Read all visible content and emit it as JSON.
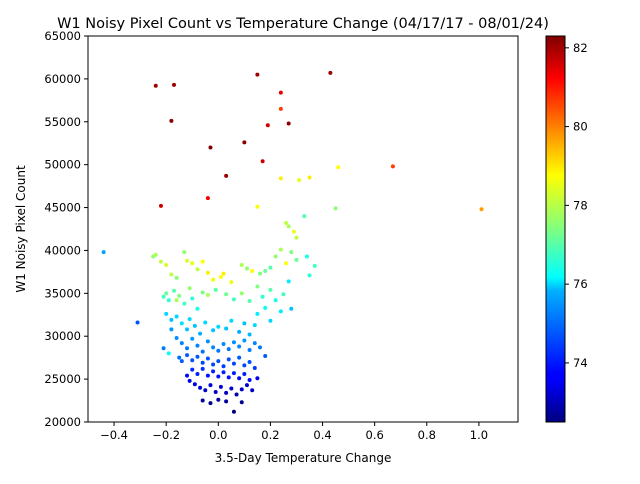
{
  "chart_data": {
    "type": "scatter",
    "title": "W1 Noisy Pixel Count vs Temperature Change (04/17/17 -  08/01/24)",
    "xlabel": "3.5-Day Temperature Change",
    "ylabel": "W1 Noisy Pixel Count",
    "xlim": [
      -0.5,
      1.15
    ],
    "ylim": [
      20000,
      65000
    ],
    "xticks": [
      -0.4,
      -0.2,
      0.0,
      0.2,
      0.4,
      0.6,
      0.8,
      1.0
    ],
    "xtick_labels": [
      "−0.4",
      "−0.2",
      "0.0",
      "0.2",
      "0.4",
      "0.6",
      "0.8",
      "1.0"
    ],
    "yticks": [
      20000,
      25000,
      30000,
      35000,
      40000,
      45000,
      50000,
      55000,
      60000,
      65000
    ],
    "ytick_labels": [
      "20000",
      "25000",
      "30000",
      "35000",
      "40000",
      "45000",
      "50000",
      "55000",
      "60000",
      "65000"
    ],
    "grid": false,
    "colorbar": {
      "colormap": "jet",
      "range": [
        72.5,
        82.3
      ],
      "ticks": [
        74,
        76,
        78,
        80,
        82
      ],
      "tick_labels": [
        "74",
        "76",
        "78",
        "80",
        "82"
      ]
    },
    "points": [
      [
        -0.24,
        59200,
        82.0
      ],
      [
        -0.17,
        59300,
        82.0
      ],
      [
        -0.18,
        55100,
        82.2
      ],
      [
        0.15,
        60500,
        82.0
      ],
      [
        0.43,
        60700,
        82.0
      ],
      [
        0.24,
        58400,
        81.3
      ],
      [
        0.24,
        56500,
        80.5
      ],
      [
        0.19,
        54600,
        81.5
      ],
      [
        0.27,
        54800,
        82.2
      ],
      [
        -0.03,
        52000,
        82.3
      ],
      [
        0.1,
        52600,
        82.2
      ],
      [
        0.17,
        50400,
        81.6
      ],
      [
        0.03,
        48700,
        82.0
      ],
      [
        -0.04,
        46100,
        81.2
      ],
      [
        -0.22,
        45200,
        81.5
      ],
      [
        0.67,
        49800,
        80.5
      ],
      [
        1.01,
        44800,
        79.6
      ],
      [
        0.46,
        49700,
        78.6
      ],
      [
        0.35,
        48500,
        78.8
      ],
      [
        0.31,
        48200,
        78.4
      ],
      [
        0.24,
        48400,
        78.8
      ],
      [
        0.15,
        45100,
        78.6
      ],
      [
        0.45,
        44900,
        77.5
      ],
      [
        0.33,
        44000,
        77.0
      ],
      [
        -0.44,
        39800,
        75.3
      ],
      [
        -0.31,
        31600,
        74.5
      ],
      [
        -0.25,
        39300,
        77.6
      ],
      [
        -0.24,
        39500,
        77.8
      ],
      [
        -0.22,
        38700,
        78.0
      ],
      [
        -0.2,
        38300,
        78.2
      ],
      [
        -0.18,
        37200,
        78.0
      ],
      [
        -0.16,
        36800,
        77.5
      ],
      [
        -0.13,
        39800,
        77.6
      ],
      [
        -0.12,
        38800,
        78.2
      ],
      [
        -0.1,
        38500,
        78.4
      ],
      [
        -0.08,
        37800,
        78.0
      ],
      [
        -0.06,
        38700,
        78.6
      ],
      [
        -0.04,
        37400,
        78.8
      ],
      [
        -0.02,
        36600,
        78.5
      ],
      [
        0.01,
        36900,
        78.6
      ],
      [
        0.02,
        37300,
        78.8
      ],
      [
        0.05,
        36300,
        78.4
      ],
      [
        0.09,
        38300,
        77.8
      ],
      [
        0.11,
        37900,
        77.6
      ],
      [
        0.13,
        37600,
        78.6
      ],
      [
        0.16,
        37300,
        77.4
      ],
      [
        0.18,
        37600,
        77.2
      ],
      [
        0.2,
        38000,
        77.0
      ],
      [
        0.22,
        39300,
        77.6
      ],
      [
        0.24,
        40100,
        77.8
      ],
      [
        0.26,
        43200,
        78.0
      ],
      [
        0.27,
        42800,
        77.8
      ],
      [
        0.29,
        42200,
        78.4
      ],
      [
        0.3,
        41500,
        78.0
      ],
      [
        0.28,
        39800,
        77.4
      ],
      [
        0.26,
        38500,
        78.6
      ],
      [
        0.3,
        38900,
        77.2
      ],
      [
        0.34,
        39300,
        76.4
      ],
      [
        0.37,
        38200,
        76.8
      ],
      [
        0.35,
        37100,
        76.6
      ],
      [
        0.27,
        36400,
        76.0
      ],
      [
        0.25,
        34900,
        76.8
      ],
      [
        -0.21,
        34600,
        76.8
      ],
      [
        -0.2,
        35000,
        77.2
      ],
      [
        -0.19,
        34200,
        76.6
      ],
      [
        -0.17,
        35300,
        77.0
      ],
      [
        -0.15,
        34700,
        77.4
      ],
      [
        -0.13,
        33800,
        76.8
      ],
      [
        -0.11,
        35600,
        77.6
      ],
      [
        -0.1,
        34400,
        76.6
      ],
      [
        -0.08,
        33200,
        76.4
      ],
      [
        -0.06,
        35100,
        77.4
      ],
      [
        -0.04,
        34800,
        77.8
      ],
      [
        -0.01,
        35400,
        77.0
      ],
      [
        0.03,
        34900,
        77.2
      ],
      [
        0.06,
        34300,
        76.8
      ],
      [
        0.09,
        35000,
        77.6
      ],
      [
        0.12,
        34100,
        77.0
      ],
      [
        0.15,
        35800,
        77.4
      ],
      [
        0.17,
        34600,
        76.6
      ],
      [
        0.2,
        35400,
        77.0
      ],
      [
        0.22,
        34200,
        76.4
      ],
      [
        0.18,
        33300,
        76.2
      ],
      [
        0.15,
        32600,
        76.0
      ],
      [
        0.2,
        31800,
        75.8
      ],
      [
        0.24,
        32900,
        76.0
      ],
      [
        0.28,
        33200,
        75.6
      ],
      [
        -0.2,
        32600,
        75.8
      ],
      [
        -0.18,
        31900,
        75.6
      ],
      [
        -0.16,
        32300,
        75.8
      ],
      [
        -0.14,
        31500,
        75.9
      ],
      [
        -0.12,
        30800,
        75.6
      ],
      [
        -0.11,
        32000,
        75.8
      ],
      [
        -0.09,
        31200,
        75.6
      ],
      [
        -0.07,
        30300,
        75.4
      ],
      [
        -0.05,
        31600,
        75.8
      ],
      [
        -0.02,
        30700,
        75.6
      ],
      [
        0.0,
        31100,
        75.8
      ],
      [
        0.03,
        30900,
        75.6
      ],
      [
        0.05,
        31800,
        75.8
      ],
      [
        0.08,
        30500,
        75.4
      ],
      [
        0.1,
        31500,
        75.6
      ],
      [
        0.12,
        30200,
        75.5
      ],
      [
        0.14,
        31300,
        75.8
      ],
      [
        -0.18,
        30800,
        75.2
      ],
      [
        -0.16,
        29800,
        75.1
      ],
      [
        -0.14,
        29200,
        75.0
      ],
      [
        -0.12,
        28600,
        74.9
      ],
      [
        -0.1,
        29700,
        75.2
      ],
      [
        -0.08,
        28900,
        75.0
      ],
      [
        -0.06,
        28200,
        74.8
      ],
      [
        -0.04,
        29400,
        75.1
      ],
      [
        -0.02,
        28700,
        75.0
      ],
      [
        0.0,
        28300,
        74.9
      ],
      [
        0.02,
        29100,
        75.1
      ],
      [
        0.04,
        28500,
        74.9
      ],
      [
        0.06,
        29300,
        75.1
      ],
      [
        0.08,
        28800,
        75.0
      ],
      [
        0.1,
        29500,
        75.2
      ],
      [
        0.12,
        28400,
        74.9
      ],
      [
        0.14,
        29200,
        75.0
      ],
      [
        0.16,
        28700,
        74.9
      ],
      [
        -0.12,
        27800,
        74.6
      ],
      [
        -0.1,
        27200,
        74.5
      ],
      [
        -0.08,
        27600,
        74.6
      ],
      [
        -0.06,
        26900,
        74.4
      ],
      [
        -0.04,
        27400,
        74.5
      ],
      [
        -0.02,
        26700,
        74.4
      ],
      [
        0.0,
        27100,
        74.5
      ],
      [
        0.02,
        26500,
        74.3
      ],
      [
        0.04,
        27300,
        74.5
      ],
      [
        0.06,
        26800,
        74.4
      ],
      [
        0.08,
        27500,
        74.6
      ],
      [
        0.1,
        26600,
        74.4
      ],
      [
        0.12,
        27000,
        74.5
      ],
      [
        0.14,
        26300,
        74.3
      ],
      [
        -0.15,
        27500,
        74.8
      ],
      [
        -0.14,
        27100,
        74.6
      ],
      [
        -0.1,
        26100,
        74.1
      ],
      [
        -0.08,
        25600,
        74.0
      ],
      [
        -0.06,
        26200,
        74.2
      ],
      [
        -0.04,
        25400,
        73.9
      ],
      [
        -0.02,
        25900,
        74.0
      ],
      [
        0.0,
        25300,
        73.9
      ],
      [
        0.02,
        25800,
        74.0
      ],
      [
        0.04,
        25200,
        73.9
      ],
      [
        0.06,
        25700,
        74.0
      ],
      [
        0.08,
        25100,
        73.8
      ],
      [
        0.1,
        25600,
        74.0
      ],
      [
        0.12,
        24900,
        73.8
      ],
      [
        -0.12,
        25400,
        73.8
      ],
      [
        -0.11,
        24800,
        73.6
      ],
      [
        -0.09,
        24400,
        73.5
      ],
      [
        -0.07,
        24000,
        73.4
      ],
      [
        -0.05,
        23700,
        73.3
      ],
      [
        -0.03,
        24300,
        73.4
      ],
      [
        -0.01,
        23500,
        73.2
      ],
      [
        0.01,
        24100,
        73.3
      ],
      [
        0.03,
        23400,
        73.1
      ],
      [
        0.05,
        23900,
        73.3
      ],
      [
        0.07,
        23200,
        73.0
      ],
      [
        0.09,
        23800,
        73.2
      ],
      [
        0.11,
        24300,
        73.3
      ],
      [
        -0.06,
        22500,
        72.8
      ],
      [
        -0.03,
        22200,
        72.7
      ],
      [
        0.0,
        22600,
        72.8
      ],
      [
        0.03,
        22400,
        72.8
      ],
      [
        0.06,
        21200,
        72.5
      ],
      [
        0.09,
        22300,
        72.7
      ],
      [
        0.13,
        23700,
        73.2
      ],
      [
        0.15,
        25100,
        73.6
      ],
      [
        0.18,
        27700,
        74.6
      ],
      [
        -0.21,
        28600,
        74.9
      ],
      [
        -0.19,
        28000,
        76.2
      ],
      [
        -0.16,
        34200,
        77.8
      ]
    ]
  }
}
